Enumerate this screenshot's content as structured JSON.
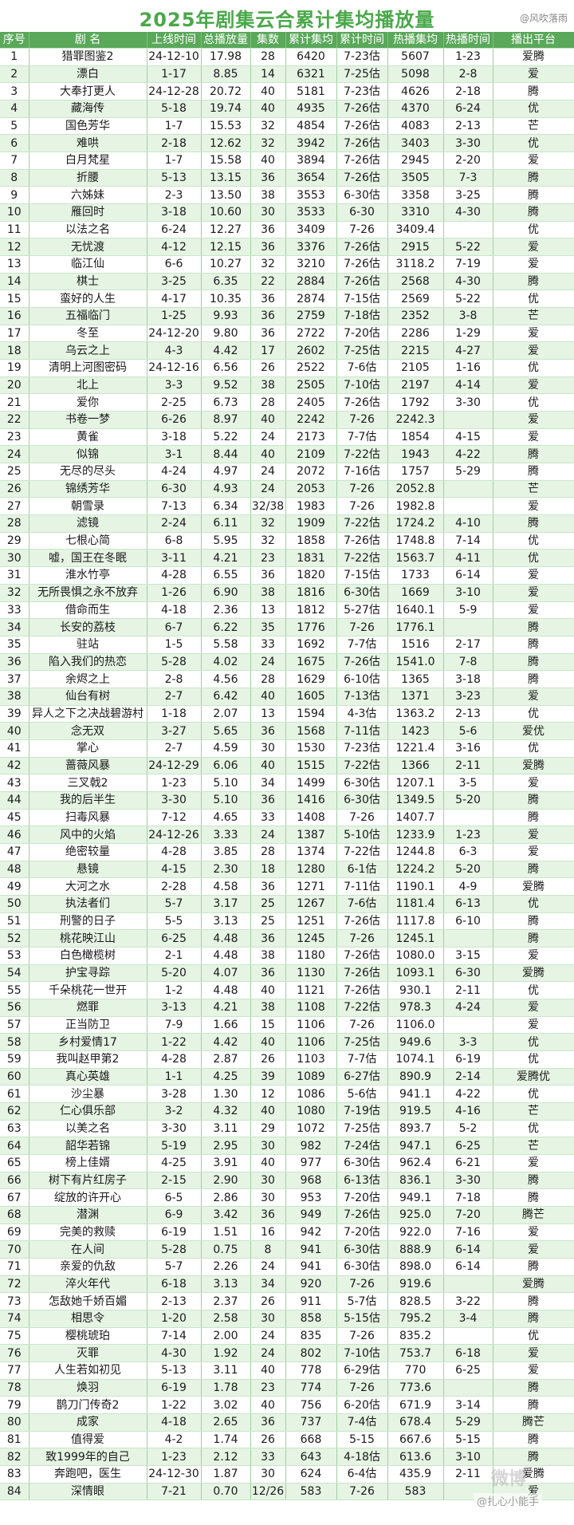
{
  "title": "2025年剧集云合累计集均播放量",
  "watermark_top": "@风吹落雨",
  "watermark_bottom": "@扎心小能手",
  "watermark_mark": "微博",
  "headers": [
    "序号",
    "剧 名",
    "上线时间",
    "总播放量",
    "集数",
    "累计集均",
    "累计时间",
    "热播集均",
    "热播时间",
    "播出平台"
  ],
  "rows": [
    [
      "1",
      "猎罪图鉴2",
      "24-12-10",
      "17.98",
      "28",
      "6420",
      "7-23估",
      "5607",
      "1-23",
      "爱腾"
    ],
    [
      "2",
      "漂白",
      "1-17",
      "8.85",
      "14",
      "6321",
      "7-25估",
      "5098",
      "2-8",
      "爱"
    ],
    [
      "3",
      "大奉打更人",
      "24-12-28",
      "20.72",
      "40",
      "5181",
      "7-23估",
      "4626",
      "2-18",
      "腾"
    ],
    [
      "4",
      "藏海传",
      "5-18",
      "19.74",
      "40",
      "4935",
      "7-26估",
      "4370",
      "6-24",
      "优"
    ],
    [
      "5",
      "国色芳华",
      "1-7",
      "15.53",
      "32",
      "4854",
      "7-26估",
      "4083",
      "2-13",
      "芒"
    ],
    [
      "6",
      "难哄",
      "2-18",
      "12.62",
      "32",
      "3942",
      "7-26估",
      "3403",
      "3-30",
      "优"
    ],
    [
      "7",
      "白月梵星",
      "1-7",
      "15.58",
      "40",
      "3894",
      "7-26估",
      "2945",
      "2-20",
      "爱"
    ],
    [
      "8",
      "折腰",
      "5-13",
      "13.15",
      "36",
      "3654",
      "7-26估",
      "3505",
      "7-3",
      "腾"
    ],
    [
      "9",
      "六姊妹",
      "2-3",
      "13.50",
      "38",
      "3553",
      "6-30估",
      "3358",
      "3-25",
      "腾"
    ],
    [
      "10",
      "雁回时",
      "3-18",
      "10.60",
      "30",
      "3533",
      "6-30",
      "3310",
      "4-30",
      "腾"
    ],
    [
      "11",
      "以法之名",
      "6-24",
      "12.27",
      "36",
      "3409",
      "7-26",
      "3409.4",
      "",
      "优"
    ],
    [
      "12",
      "无忧渡",
      "4-12",
      "12.15",
      "36",
      "3376",
      "7-26估",
      "2915",
      "5-22",
      "爱"
    ],
    [
      "13",
      "临江仙",
      "6-6",
      "10.27",
      "32",
      "3210",
      "7-26估",
      "3118.2",
      "7-19",
      "爱"
    ],
    [
      "14",
      "棋士",
      "3-25",
      "6.35",
      "22",
      "2884",
      "7-26估",
      "2568",
      "4-30",
      "腾"
    ],
    [
      "15",
      "蛮好的人生",
      "4-17",
      "10.35",
      "36",
      "2874",
      "7-15估",
      "2569",
      "5-22",
      "优"
    ],
    [
      "16",
      "五福临门",
      "1-25",
      "9.93",
      "36",
      "2759",
      "7-18估",
      "2352",
      "3-8",
      "芒"
    ],
    [
      "17",
      "冬至",
      "24-12-20",
      "9.80",
      "36",
      "2722",
      "7-20估",
      "2286",
      "1-29",
      "爱"
    ],
    [
      "18",
      "乌云之上",
      "4-3",
      "4.42",
      "17",
      "2602",
      "7-25估",
      "2215",
      "4-27",
      "爱"
    ],
    [
      "19",
      "清明上河图密码",
      "24-12-16",
      "6.56",
      "26",
      "2522",
      "7-6估",
      "2105",
      "1-16",
      "优"
    ],
    [
      "20",
      "北上",
      "3-3",
      "9.52",
      "38",
      "2505",
      "7-10估",
      "2197",
      "4-14",
      "爱"
    ],
    [
      "21",
      "爱你",
      "2-25",
      "6.73",
      "28",
      "2405",
      "7-26估",
      "1792",
      "3-30",
      "优"
    ],
    [
      "22",
      "书卷一梦",
      "6-26",
      "8.97",
      "40",
      "2242",
      "7-26",
      "2242.3",
      "",
      "爱"
    ],
    [
      "23",
      "黄雀",
      "3-18",
      "5.22",
      "24",
      "2173",
      "7-7估",
      "1854",
      "4-15",
      "爱"
    ],
    [
      "24",
      "似锦",
      "3-1",
      "8.44",
      "40",
      "2109",
      "7-22估",
      "1943",
      "4-22",
      "腾"
    ],
    [
      "25",
      "无尽的尽头",
      "4-24",
      "4.97",
      "24",
      "2072",
      "7-16估",
      "1757",
      "5-29",
      "腾"
    ],
    [
      "26",
      "锦绣芳华",
      "6-30",
      "4.93",
      "24",
      "2053",
      "7-26",
      "2052.8",
      "",
      "芒"
    ],
    [
      "27",
      "朝雪录",
      "7-13",
      "6.34",
      "32/38",
      "1983",
      "7-26",
      "1982.8",
      "",
      "爱"
    ],
    [
      "28",
      "滤镜",
      "2-24",
      "6.11",
      "32",
      "1909",
      "7-22估",
      "1724.2",
      "4-10",
      "腾"
    ],
    [
      "29",
      "七根心简",
      "6-8",
      "5.95",
      "32",
      "1858",
      "7-26估",
      "1748.8",
      "7-14",
      "优"
    ],
    [
      "30",
      "嘘，国王在冬眠",
      "3-11",
      "4.21",
      "23",
      "1831",
      "7-22估",
      "1563.7",
      "4-11",
      "优"
    ],
    [
      "31",
      "淮水竹亭",
      "4-28",
      "6.55",
      "36",
      "1820",
      "7-15估",
      "1733",
      "6-14",
      "爱"
    ],
    [
      "32",
      "无所畏惧之永不放弃",
      "1-26",
      "6.90",
      "38",
      "1816",
      "6-30估",
      "1669",
      "3-10",
      "爱"
    ],
    [
      "33",
      "借命而生",
      "4-18",
      "2.36",
      "13",
      "1812",
      "5-27估",
      "1640.1",
      "5-9",
      "爱"
    ],
    [
      "34",
      "长安的荔枝",
      "6-7",
      "6.22",
      "35",
      "1776",
      "7-26",
      "1776.1",
      "",
      "腾"
    ],
    [
      "35",
      "驻站",
      "1-5",
      "5.58",
      "33",
      "1692",
      "7-7估",
      "1516",
      "2-17",
      "腾"
    ],
    [
      "36",
      "陷入我们的热恋",
      "5-28",
      "4.02",
      "24",
      "1675",
      "7-26估",
      "1541.0",
      "7-8",
      "腾"
    ],
    [
      "37",
      "余烬之上",
      "2-8",
      "4.56",
      "28",
      "1629",
      "6-10估",
      "1365",
      "3-18",
      "腾"
    ],
    [
      "38",
      "仙台有树",
      "2-7",
      "6.42",
      "40",
      "1605",
      "7-13估",
      "1371",
      "3-23",
      "爱"
    ],
    [
      "39",
      "异人之下之决战碧游村",
      "1-18",
      "2.07",
      "13",
      "1594",
      "4-3估",
      "1363.2",
      "2-13",
      "优"
    ],
    [
      "40",
      "念无双",
      "3-27",
      "5.65",
      "36",
      "1568",
      "7-11估",
      "1423",
      "5-6",
      "爱优"
    ],
    [
      "41",
      "掌心",
      "2-7",
      "4.59",
      "30",
      "1530",
      "7-23估",
      "1221.4",
      "3-16",
      "优"
    ],
    [
      "42",
      "蔷薇风暴",
      "24-12-29",
      "6.06",
      "40",
      "1515",
      "7-22估",
      "1366",
      "2-11",
      "爱腾"
    ],
    [
      "43",
      "三叉戟2",
      "1-23",
      "5.10",
      "34",
      "1499",
      "6-30估",
      "1207.1",
      "3-5",
      "爱"
    ],
    [
      "44",
      "我的后半生",
      "3-30",
      "5.10",
      "36",
      "1416",
      "6-30估",
      "1349.5",
      "5-20",
      "腾"
    ],
    [
      "45",
      "扫毒风暴",
      "7-12",
      "4.65",
      "33",
      "1408",
      "7-26",
      "1407.7",
      "",
      "腾"
    ],
    [
      "46",
      "风中的火焰",
      "24-12-26",
      "3.33",
      "24",
      "1387",
      "5-10估",
      "1233.9",
      "1-23",
      "爱"
    ],
    [
      "47",
      "绝密较量",
      "4-28",
      "3.85",
      "28",
      "1374",
      "7-22估",
      "1244.8",
      "6-3",
      "爱"
    ],
    [
      "48",
      "悬镜",
      "4-15",
      "2.30",
      "18",
      "1280",
      "6-1估",
      "1224.2",
      "5-20",
      "腾"
    ],
    [
      "49",
      "大河之水",
      "2-28",
      "4.58",
      "36",
      "1271",
      "7-11估",
      "1190.1",
      "4-9",
      "爱腾"
    ],
    [
      "50",
      "执法者们",
      "5-7",
      "3.17",
      "25",
      "1267",
      "7-6估",
      "1181.4",
      "6-13",
      "优"
    ],
    [
      "51",
      "刑警的日子",
      "5-5",
      "3.13",
      "25",
      "1251",
      "7-26估",
      "1117.8",
      "6-10",
      "腾"
    ],
    [
      "52",
      "桃花映江山",
      "6-25",
      "4.48",
      "36",
      "1245",
      "7-26",
      "1245.1",
      "",
      "腾"
    ],
    [
      "53",
      "白色橄榄树",
      "2-1",
      "4.48",
      "38",
      "1180",
      "7-26估",
      "1080.0",
      "3-15",
      "爱"
    ],
    [
      "54",
      "护宝寻踪",
      "5-20",
      "4.07",
      "36",
      "1130",
      "7-26估",
      "1093.1",
      "6-30",
      "爱腾"
    ],
    [
      "55",
      "千朵桃花一世开",
      "1-2",
      "4.48",
      "40",
      "1121",
      "7-26估",
      "930.1",
      "2-11",
      "优"
    ],
    [
      "56",
      "燃罪",
      "3-13",
      "4.21",
      "38",
      "1108",
      "7-22估",
      "978.3",
      "4-24",
      "爱"
    ],
    [
      "57",
      "正当防卫",
      "7-9",
      "1.66",
      "15",
      "1106",
      "7-26",
      "1106.0",
      "",
      "爱"
    ],
    [
      "58",
      "乡村爱情17",
      "1-22",
      "4.42",
      "40",
      "1106",
      "7-25估",
      "949.6",
      "3-3",
      "优"
    ],
    [
      "59",
      "我叫赵甲第2",
      "4-28",
      "2.87",
      "26",
      "1103",
      "7-7估",
      "1074.1",
      "6-19",
      "优"
    ],
    [
      "60",
      "真心英雄",
      "1-1",
      "4.25",
      "39",
      "1089",
      "6-27估",
      "890.9",
      "2-14",
      "爱腾优"
    ],
    [
      "61",
      "沙尘暴",
      "3-28",
      "1.30",
      "12",
      "1086",
      "5-6估",
      "941.1",
      "4-22",
      "优"
    ],
    [
      "62",
      "仁心俱乐部",
      "3-2",
      "4.32",
      "40",
      "1080",
      "7-19估",
      "919.5",
      "4-16",
      "芒"
    ],
    [
      "63",
      "以美之名",
      "3-30",
      "3.11",
      "29",
      "1072",
      "7-25估",
      "893.7",
      "5-2",
      "优"
    ],
    [
      "64",
      "韶华若锦",
      "5-19",
      "2.95",
      "30",
      "982",
      "7-24估",
      "947.1",
      "6-25",
      "芒"
    ],
    [
      "65",
      "榜上佳婿",
      "4-25",
      "3.91",
      "40",
      "977",
      "6-30估",
      "962.4",
      "6-21",
      "爱"
    ],
    [
      "66",
      "树下有片红房子",
      "2-15",
      "2.90",
      "30",
      "968",
      "6-13估",
      "836.1",
      "3-30",
      "腾"
    ],
    [
      "67",
      "绽放的许开心",
      "6-5",
      "2.86",
      "30",
      "953",
      "7-20估",
      "949.1",
      "7-18",
      "腾"
    ],
    [
      "68",
      "潜渊",
      "6-9",
      "3.42",
      "36",
      "949",
      "7-26估",
      "925.0",
      "7-20",
      "腾芒"
    ],
    [
      "69",
      "完美的救赎",
      "6-19",
      "1.51",
      "16",
      "942",
      "7-20估",
      "922.0",
      "7-16",
      "爱"
    ],
    [
      "70",
      "在人间",
      "5-28",
      "0.75",
      "8",
      "941",
      "6-30估",
      "888.9",
      "6-14",
      "爱"
    ],
    [
      "71",
      "亲爱的仇敌",
      "5-7",
      "2.26",
      "24",
      "941",
      "6-30估",
      "898.0",
      "6-14",
      "腾"
    ],
    [
      "72",
      "淬火年代",
      "6-18",
      "3.13",
      "34",
      "920",
      "7-26",
      "919.6",
      "",
      "爱腾"
    ],
    [
      "73",
      "怎敌她千娇百媚",
      "2-13",
      "2.37",
      "26",
      "911",
      "5-7估",
      "828.5",
      "3-22",
      "腾"
    ],
    [
      "74",
      "相思令",
      "1-20",
      "2.58",
      "30",
      "858",
      "5-15估",
      "795.2",
      "3-4",
      "腾"
    ],
    [
      "75",
      "樱桃琥珀",
      "7-14",
      "2.00",
      "24",
      "835",
      "7-26",
      "835.2",
      "",
      "优"
    ],
    [
      "76",
      "灭罪",
      "4-30",
      "1.92",
      "24",
      "802",
      "7-10估",
      "753.7",
      "6-18",
      "爱"
    ],
    [
      "77",
      "人生若如初见",
      "5-13",
      "3.11",
      "40",
      "778",
      "6-29估",
      "770",
      "6-25",
      "爱"
    ],
    [
      "78",
      "焕羽",
      "6-19",
      "1.78",
      "23",
      "774",
      "7-26",
      "773.6",
      "",
      "腾"
    ],
    [
      "79",
      "鹊刀门传奇2",
      "1-22",
      "3.02",
      "40",
      "756",
      "6-20估",
      "671.9",
      "3-14",
      "腾"
    ],
    [
      "80",
      "成家",
      "4-18",
      "2.65",
      "36",
      "737",
      "7-4估",
      "678.4",
      "5-29",
      "腾芒"
    ],
    [
      "81",
      "值得爱",
      "4-2",
      "1.74",
      "26",
      "668",
      "5-15",
      "667.6",
      "5-15",
      "腾"
    ],
    [
      "82",
      "致1999年的自己",
      "1-23",
      "2.12",
      "33",
      "643",
      "4-18估",
      "613.6",
      "3-10",
      "腾"
    ],
    [
      "83",
      "奔跑吧，医生",
      "24-12-30",
      "1.87",
      "30",
      "624",
      "6-4估",
      "435.9",
      "2-11",
      "爱腾"
    ],
    [
      "84",
      "深情眼",
      "7-21",
      "0.70",
      "12/26",
      "583",
      "7-26",
      "583",
      "",
      "爱"
    ]
  ]
}
